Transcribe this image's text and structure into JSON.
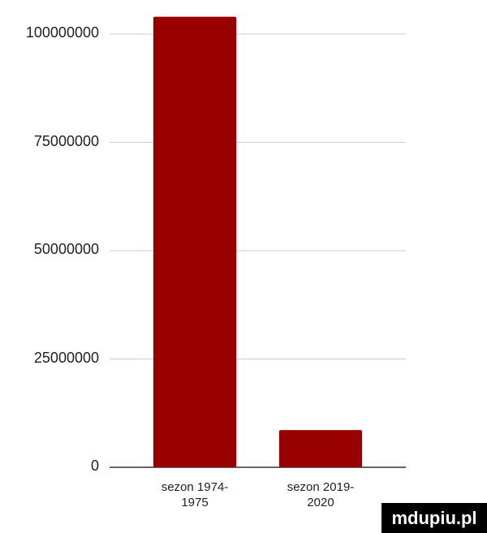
{
  "chart_data": {
    "type": "bar",
    "categories": [
      "sezon 1974-1975",
      "sezon 2019-2020"
    ],
    "values": [
      104000000,
      8600000
    ],
    "color": "#990000",
    "ylim": [
      0,
      100000000
    ],
    "yticks": [
      0,
      25000000,
      50000000,
      75000000,
      100000000
    ],
    "grid": true
  },
  "watermark": "mdupiu.pl"
}
